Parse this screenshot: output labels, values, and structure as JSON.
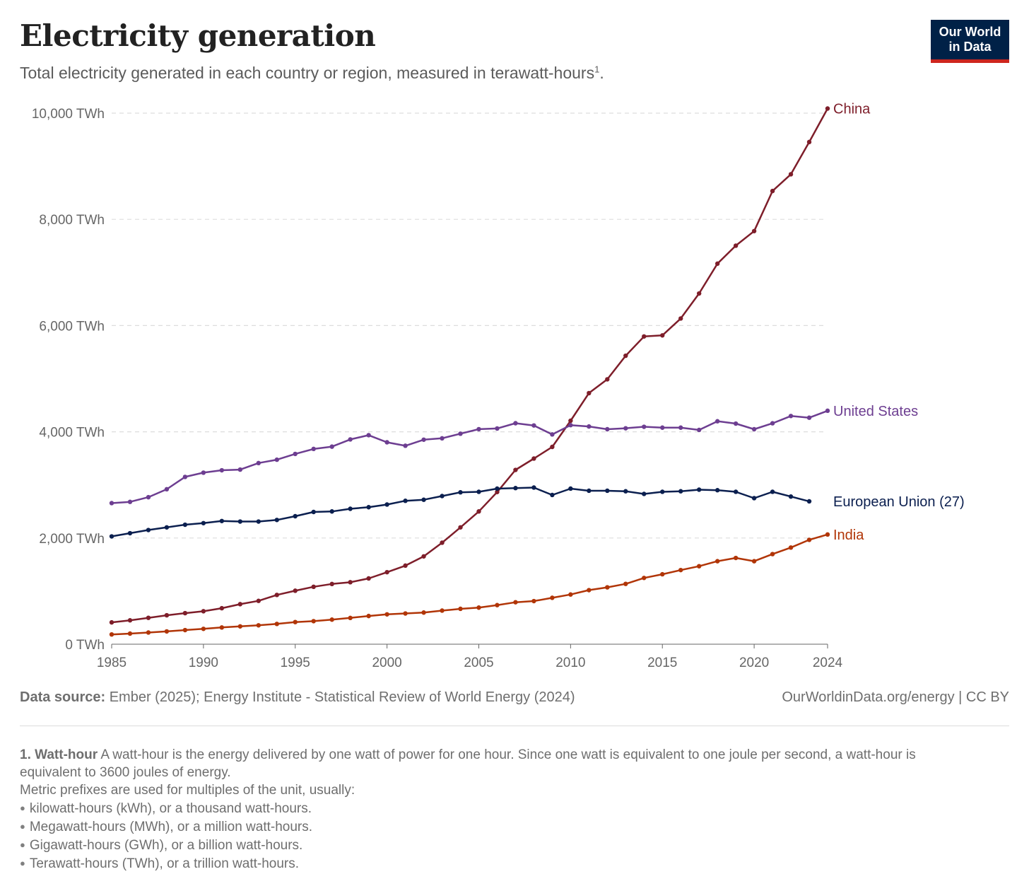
{
  "header": {
    "title": "Electricity generation",
    "subtitle": "Total electricity generated in each country or region, measured in terawatt-hours",
    "subtitle_footnote": "1",
    "subtitle_end": "."
  },
  "logo": {
    "line1": "Our World",
    "line2": "in Data"
  },
  "footer": {
    "source_label": "Data source:",
    "source_text": "Ember (2025); Energy Institute - Statistical Review of World Energy (2024)",
    "credit": "OurWorldinData.org/energy | CC BY"
  },
  "notes": {
    "term": "1. Watt-hour",
    "definition": "A watt-hour is the energy delivered by one watt of power for one hour. Since one watt is equivalent to one joule per second, a watt-hour is equivalent to 3600 joules of energy.",
    "prefix_intro": "Metric prefixes are used for multiples of the unit, usually:",
    "items": [
      "kilowatt-hours (kWh), or a thousand watt-hours.",
      "Megawatt-hours (MWh), or a million watt-hours.",
      "Gigawatt-hours (GWh), or a billion watt-hours.",
      "Terawatt-hours (TWh), or a trillion watt-hours."
    ]
  },
  "chart_data": {
    "type": "line",
    "x": [
      1985,
      1986,
      1987,
      1988,
      1989,
      1990,
      1991,
      1992,
      1993,
      1994,
      1995,
      1996,
      1997,
      1998,
      1999,
      2000,
      2001,
      2002,
      2003,
      2004,
      2005,
      2006,
      2007,
      2008,
      2009,
      2010,
      2011,
      2012,
      2013,
      2014,
      2015,
      2016,
      2017,
      2018,
      2019,
      2020,
      2021,
      2022,
      2023,
      2024
    ],
    "xlim": [
      1985,
      2024
    ],
    "ylim": [
      0,
      10000
    ],
    "y_ticks": [
      {
        "value": 0,
        "label": "0 TWh"
      },
      {
        "value": 2000,
        "label": "2,000 TWh"
      },
      {
        "value": 4000,
        "label": "4,000 TWh"
      },
      {
        "value": 6000,
        "label": "6,000 TWh"
      },
      {
        "value": 8000,
        "label": "8,000 TWh"
      },
      {
        "value": 10000,
        "label": "10,000 TWh"
      }
    ],
    "x_ticks": [
      {
        "value": 1985,
        "label": "1985"
      },
      {
        "value": 1990,
        "label": "1990"
      },
      {
        "value": 1995,
        "label": "1995"
      },
      {
        "value": 2000,
        "label": "2000"
      },
      {
        "value": 2005,
        "label": "2005"
      },
      {
        "value": 2010,
        "label": "2010"
      },
      {
        "value": 2015,
        "label": "2015"
      },
      {
        "value": 2020,
        "label": "2020"
      },
      {
        "value": 2024,
        "label": "2024"
      }
    ],
    "grid": true,
    "legend": "inline-right",
    "series": [
      {
        "name": "China",
        "color": "#7e1e2a",
        "values": [
          411,
          450,
          497,
          545,
          585,
          621,
          678,
          754,
          816,
          928,
          1007,
          1081,
          1134,
          1167,
          1239,
          1356,
          1480,
          1654,
          1911,
          2200,
          2500,
          2866,
          3282,
          3496,
          3715,
          4208,
          4728,
          4988,
          5432,
          5795,
          5815,
          6133,
          6604,
          7166,
          7504,
          7779,
          8534,
          8849,
          9456,
          10087
        ]
      },
      {
        "name": "United States",
        "color": "#6d3e91",
        "values": [
          2657,
          2680,
          2768,
          2918,
          3150,
          3230,
          3275,
          3288,
          3411,
          3474,
          3583,
          3677,
          3720,
          3856,
          3936,
          3802,
          3737,
          3851,
          3877,
          3964,
          4049,
          4062,
          4161,
          4119,
          3950,
          4125,
          4100,
          4048,
          4066,
          4094,
          4078,
          4078,
          4035,
          4198,
          4154,
          4048,
          4160,
          4297,
          4265,
          4396
        ]
      },
      {
        "name": "European Union (27)",
        "color": "#0b1f4f",
        "values": [
          2030,
          2090,
          2150,
          2200,
          2250,
          2280,
          2320,
          2310,
          2310,
          2340,
          2410,
          2490,
          2500,
          2550,
          2580,
          2630,
          2700,
          2720,
          2790,
          2860,
          2870,
          2930,
          2940,
          2950,
          2810,
          2930,
          2890,
          2890,
          2880,
          2830,
          2870,
          2880,
          2910,
          2900,
          2870,
          2750,
          2870,
          2780,
          2690,
          null
        ]
      },
      {
        "name": "India",
        "color": "#b13507",
        "values": [
          184,
          200,
          220,
          241,
          266,
          289,
          315,
          336,
          356,
          382,
          417,
          434,
          463,
          495,
          531,
          562,
          579,
          596,
          633,
          666,
          689,
          736,
          790,
          812,
          874,
          936,
          1018,
          1071,
          1136,
          1248,
          1317,
          1396,
          1469,
          1563,
          1624,
          1563,
          1697,
          1820,
          1965,
          2066
        ]
      }
    ]
  }
}
